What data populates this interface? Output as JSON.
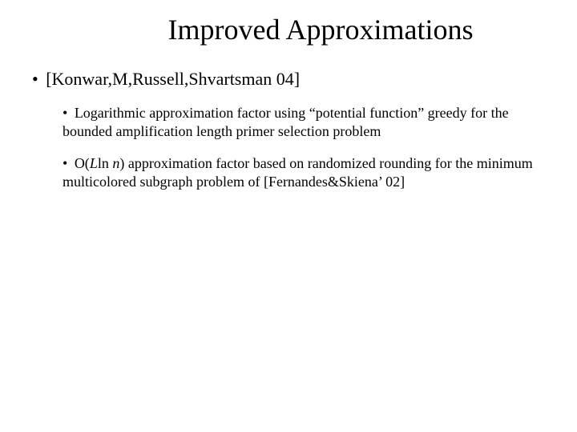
{
  "title": "Improved Approximations",
  "bullet_char": "•",
  "level1": {
    "text": "[Konwar,M,Russell,Shvartsman 04]"
  },
  "sub": [
    {
      "prefix": "Logarithmic approximation factor using “potential function” greedy for the bounded amplification length primer selection problem"
    },
    {
      "pre": "O(",
      "italic1": "L",
      "mid1": "ln ",
      "italic2": "n",
      "post": ") approximation factor based on randomized rounding for the minimum multicolored subgraph problem of [Fernandes&Skiena’ 02]"
    }
  ],
  "colors": {
    "background": "#ffffff",
    "text": "#000000"
  },
  "fonts": {
    "family": "Times New Roman",
    "title_size_pt": 36,
    "level1_size_pt": 22,
    "level2_size_pt": 18
  }
}
